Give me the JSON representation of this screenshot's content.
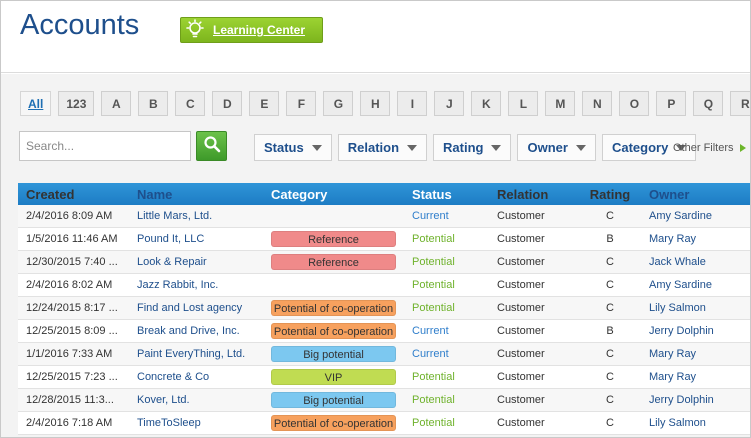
{
  "header": {
    "title": "Accounts",
    "learning_center": "Learning Center"
  },
  "alphabet": [
    "All",
    "123",
    "A",
    "B",
    "C",
    "D",
    "E",
    "F",
    "G",
    "H",
    "I",
    "J",
    "K",
    "L",
    "M",
    "N",
    "O",
    "P",
    "Q",
    "R"
  ],
  "search": {
    "placeholder": "Search..."
  },
  "filters": [
    "Status",
    "Relation",
    "Rating",
    "Owner",
    "Category"
  ],
  "other_filters": "Other Filters",
  "table": {
    "columns": [
      "Created",
      "Name",
      "Category",
      "Status",
      "Relation",
      "Rating",
      "Owner"
    ],
    "rows": [
      {
        "created": "2/4/2016 8:09 AM",
        "name": "Little Mars, Ltd.",
        "category": "",
        "status": "Current",
        "relation": "Customer",
        "rating": "C",
        "owner": "Amy Sardine"
      },
      {
        "created": "1/5/2016 11:46 AM",
        "name": "Pound It, LLC",
        "category": "Reference",
        "status": "Potential",
        "relation": "Customer",
        "rating": "B",
        "owner": "Mary Ray"
      },
      {
        "created": "12/30/2015 7:40 ...",
        "name": "Look & Repair",
        "category": "Reference",
        "status": "Potential",
        "relation": "Customer",
        "rating": "C",
        "owner": "Jack Whale"
      },
      {
        "created": "2/4/2016 8:02 AM",
        "name": "Jazz Rabbit, Inc.",
        "category": "",
        "status": "Potential",
        "relation": "Customer",
        "rating": "C",
        "owner": "Amy Sardine"
      },
      {
        "created": "12/24/2015 8:17 ...",
        "name": "Find and Lost agency",
        "category": "Potential of co-operation",
        "status": "Potential",
        "relation": "Customer",
        "rating": "C",
        "owner": "Lily Salmon"
      },
      {
        "created": "12/25/2015 8:09 ...",
        "name": "Break and Drive, Inc.",
        "category": "Potential of co-operation",
        "status": "Current",
        "relation": "Customer",
        "rating": "B",
        "owner": "Jerry Dolphin"
      },
      {
        "created": "1/1/2016 7:33 AM",
        "name": "Paint EveryThing, Ltd.",
        "category": "Big potential",
        "status": "Current",
        "relation": "Customer",
        "rating": "C",
        "owner": "Mary Ray"
      },
      {
        "created": "12/25/2015 7:23 ...",
        "name": "Concrete & Co",
        "category": "VIP",
        "status": "Potential",
        "relation": "Customer",
        "rating": "C",
        "owner": "Mary Ray"
      },
      {
        "created": "12/28/2015 11:3...",
        "name": "Kover, Ltd.",
        "category": "Big potential",
        "status": "Potential",
        "relation": "Customer",
        "rating": "C",
        "owner": "Jerry Dolphin"
      },
      {
        "created": "2/4/2016 7:18 AM",
        "name": "TimeToSleep",
        "category": "Potential of co-operation",
        "status": "Potential",
        "relation": "Customer",
        "rating": "C",
        "owner": "Lily Salmon"
      }
    ]
  },
  "colors": {
    "title": "#1e4f8c",
    "header_bar": "#2f95d8",
    "status_current": "#2f7ecb",
    "status_potential": "#6fb22c",
    "cat_reference": "#f08a8a",
    "cat_coop": "#f7a15e",
    "cat_big_potential": "#7cc8f0",
    "cat_vip": "#c0dc52"
  }
}
